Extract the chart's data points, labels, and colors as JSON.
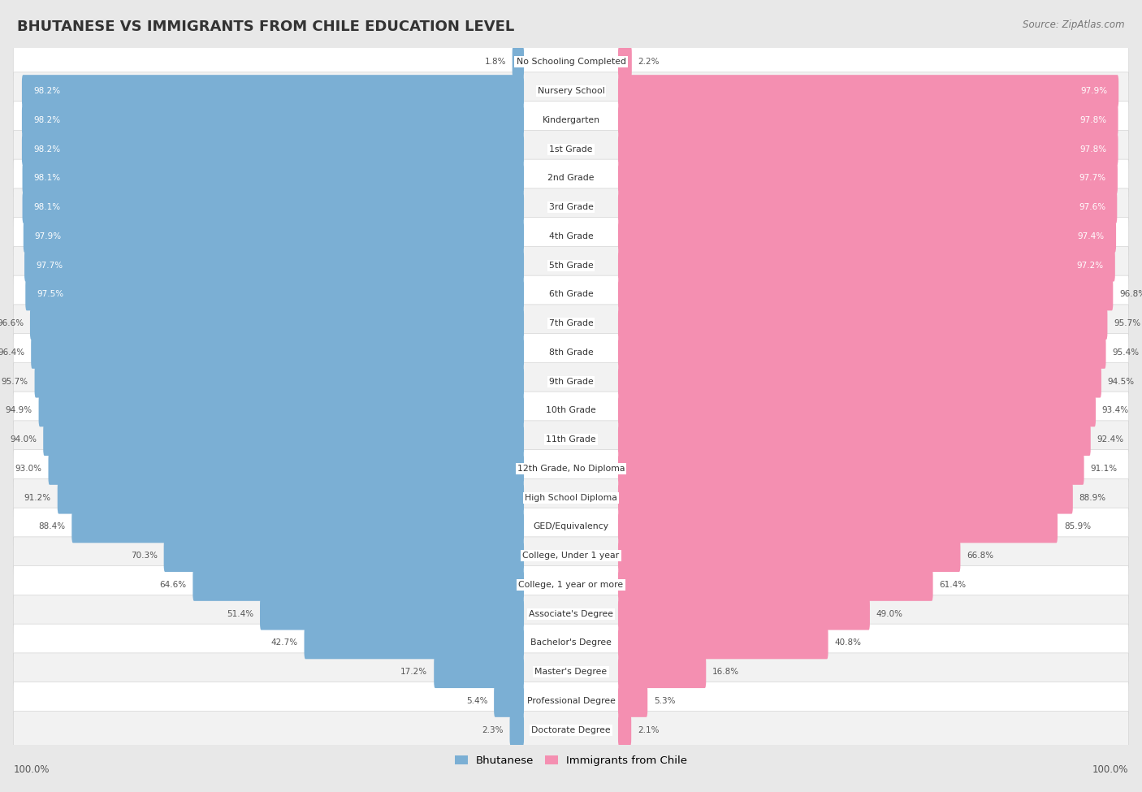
{
  "title": "BHUTANESE VS IMMIGRANTS FROM CHILE EDUCATION LEVEL",
  "source": "Source: ZipAtlas.com",
  "categories": [
    "No Schooling Completed",
    "Nursery School",
    "Kindergarten",
    "1st Grade",
    "2nd Grade",
    "3rd Grade",
    "4th Grade",
    "5th Grade",
    "6th Grade",
    "7th Grade",
    "8th Grade",
    "9th Grade",
    "10th Grade",
    "11th Grade",
    "12th Grade, No Diploma",
    "High School Diploma",
    "GED/Equivalency",
    "College, Under 1 year",
    "College, 1 year or more",
    "Associate's Degree",
    "Bachelor's Degree",
    "Master's Degree",
    "Professional Degree",
    "Doctorate Degree"
  ],
  "bhutanese": [
    1.8,
    98.2,
    98.2,
    98.2,
    98.1,
    98.1,
    97.9,
    97.7,
    97.5,
    96.6,
    96.4,
    95.7,
    94.9,
    94.0,
    93.0,
    91.2,
    88.4,
    70.3,
    64.6,
    51.4,
    42.7,
    17.2,
    5.4,
    2.3
  ],
  "chile": [
    2.2,
    97.9,
    97.8,
    97.8,
    97.7,
    97.6,
    97.4,
    97.2,
    96.8,
    95.7,
    95.4,
    94.5,
    93.4,
    92.4,
    91.1,
    88.9,
    85.9,
    66.8,
    61.4,
    49.0,
    40.8,
    16.8,
    5.3,
    2.1
  ],
  "blue_color": "#7bafd4",
  "pink_color": "#f48fb1",
  "bg_color": "#e8e8e8",
  "row_color_even": "#ffffff",
  "row_color_odd": "#f2f2f2",
  "text_dark": "#333333",
  "text_mid": "#555555",
  "text_light": "#777777",
  "legend_blue": "Bhutanese",
  "legend_pink": "Immigrants from Chile"
}
